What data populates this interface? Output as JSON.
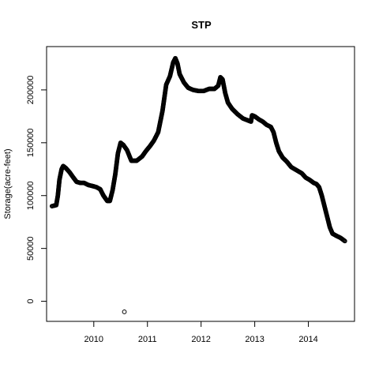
{
  "chart_data": {
    "type": "scatter",
    "title": "STP",
    "xlabel": "",
    "ylabel": "Storage(acre-feet)",
    "xlim": [
      2009.12,
      2014.86
    ],
    "ylim": [
      -19000,
      241000
    ],
    "x_ticks": [
      2010,
      2011,
      2012,
      2013,
      2014
    ],
    "x_tick_labels": [
      "2010",
      "2011",
      "2012",
      "2013",
      "2014"
    ],
    "y_ticks": [
      0,
      50000,
      100000,
      150000,
      200000
    ],
    "y_tick_labels": [
      "0",
      "50000",
      "100000",
      "150000",
      "200000"
    ],
    "grid": false,
    "marker": "open-circle",
    "series": [
      {
        "points": [
          [
            2009.22,
            90000
          ],
          [
            2009.3,
            91000
          ],
          [
            2009.33,
            100000
          ],
          [
            2009.36,
            115000
          ],
          [
            2009.4,
            125000
          ],
          [
            2009.43,
            128000
          ],
          [
            2009.48,
            126000
          ],
          [
            2009.55,
            122000
          ],
          [
            2009.62,
            117000
          ],
          [
            2009.68,
            113000
          ],
          [
            2009.75,
            112000
          ],
          [
            2009.82,
            112000
          ],
          [
            2009.9,
            110000
          ],
          [
            2009.98,
            109000
          ],
          [
            2010.05,
            108000
          ],
          [
            2010.12,
            106000
          ],
          [
            2010.18,
            100000
          ],
          [
            2010.25,
            95000
          ],
          [
            2010.3,
            95000
          ],
          [
            2010.35,
            105000
          ],
          [
            2010.4,
            120000
          ],
          [
            2010.45,
            140000
          ],
          [
            2010.5,
            150000
          ],
          [
            2010.55,
            148000
          ],
          [
            2010.62,
            143000
          ],
          [
            2010.7,
            133000
          ],
          [
            2010.8,
            133000
          ],
          [
            2010.9,
            137000
          ],
          [
            2010.97,
            142000
          ],
          [
            2011.05,
            147000
          ],
          [
            2011.12,
            152000
          ],
          [
            2011.2,
            160000
          ],
          [
            2011.28,
            180000
          ],
          [
            2011.35,
            205000
          ],
          [
            2011.42,
            213000
          ],
          [
            2011.48,
            226000
          ],
          [
            2011.52,
            230000
          ],
          [
            2011.56,
            225000
          ],
          [
            2011.6,
            215000
          ],
          [
            2011.68,
            207000
          ],
          [
            2011.76,
            202000
          ],
          [
            2011.85,
            200000
          ],
          [
            2011.95,
            199000
          ],
          [
            2012.05,
            199000
          ],
          [
            2012.15,
            201000
          ],
          [
            2012.25,
            201000
          ],
          [
            2012.32,
            204000
          ],
          [
            2012.36,
            212000
          ],
          [
            2012.4,
            210000
          ],
          [
            2012.45,
            197000
          ],
          [
            2012.5,
            188000
          ],
          [
            2012.58,
            182000
          ],
          [
            2012.68,
            177000
          ],
          [
            2012.78,
            173000
          ],
          [
            2012.88,
            171000
          ],
          [
            2012.93,
            170000
          ],
          [
            2012.95,
            176000
          ],
          [
            2013.0,
            175000
          ],
          [
            2013.08,
            172000
          ],
          [
            2013.15,
            170000
          ],
          [
            2013.22,
            167000
          ],
          [
            2013.3,
            165000
          ],
          [
            2013.35,
            160000
          ],
          [
            2013.4,
            150000
          ],
          [
            2013.45,
            142000
          ],
          [
            2013.52,
            136000
          ],
          [
            2013.6,
            132000
          ],
          [
            2013.68,
            127000
          ],
          [
            2013.78,
            124000
          ],
          [
            2013.88,
            121000
          ],
          [
            2013.95,
            117000
          ],
          [
            2014.02,
            115000
          ],
          [
            2014.1,
            112000
          ],
          [
            2014.15,
            111000
          ],
          [
            2014.2,
            108000
          ],
          [
            2014.25,
            100000
          ],
          [
            2014.3,
            90000
          ],
          [
            2014.35,
            80000
          ],
          [
            2014.4,
            70000
          ],
          [
            2014.45,
            64000
          ],
          [
            2014.52,
            62000
          ],
          [
            2014.6,
            60000
          ],
          [
            2014.68,
            57000
          ],
          [
            2010.57,
            -10000
          ]
        ]
      }
    ]
  }
}
